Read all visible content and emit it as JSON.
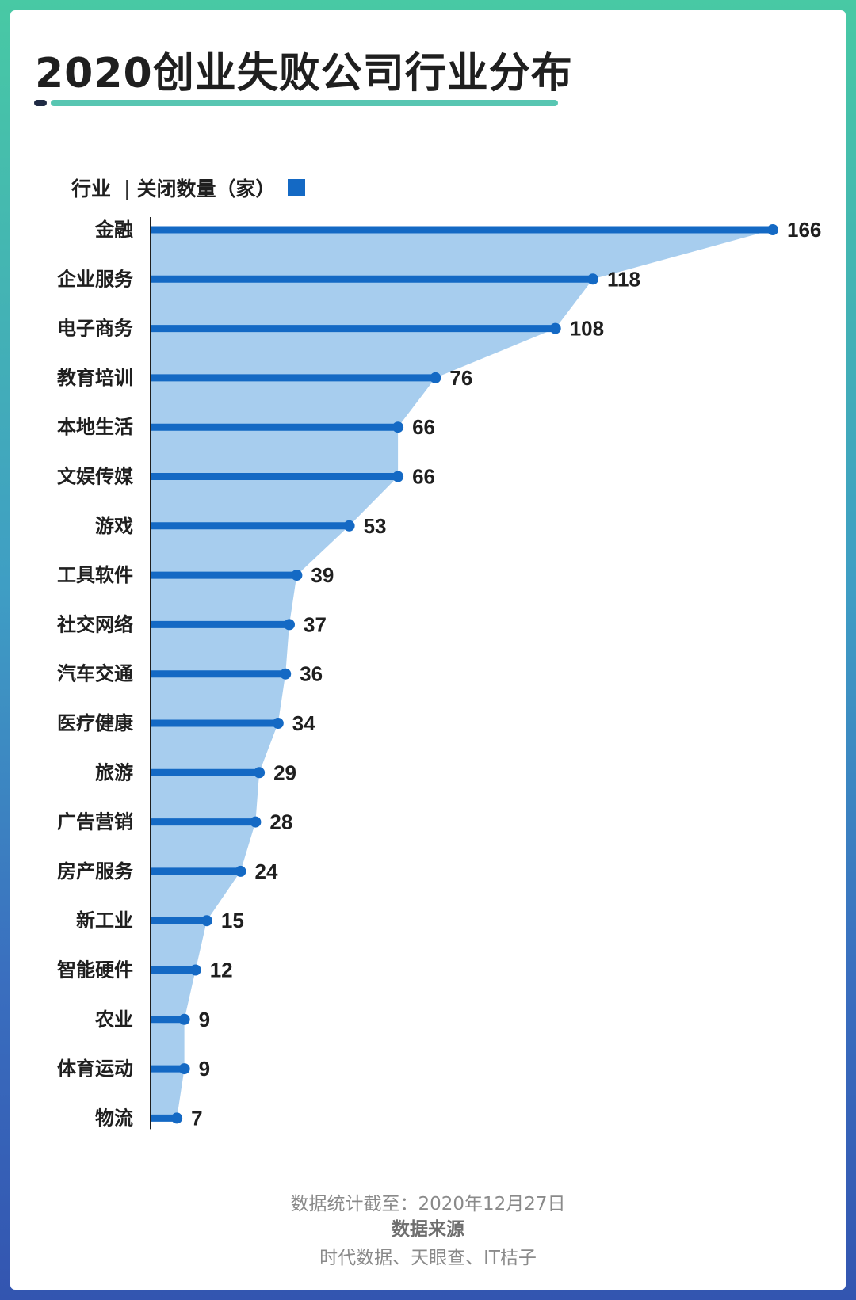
{
  "title": "2020创业失败公司行业分布",
  "legend": {
    "category_header": "行业",
    "separator": "|",
    "value_header": "关闭数量（家）",
    "color": "#1469c4"
  },
  "footer": {
    "date_note": "数据统计截至：2020年12月27日",
    "source_title": "数据来源",
    "sources": "时代数据、天眼查、IT桔子"
  },
  "colors": {
    "bar": "#1469c4",
    "area": "#a7cdee",
    "title": "#1f1f1f",
    "accent_line": "#58c6b2"
  },
  "chart_data": {
    "type": "bar",
    "orientation": "horizontal",
    "title": "2020创业失败公司行业分布",
    "xlabel": "关闭数量（家）",
    "ylabel": "行业",
    "categories": [
      "金融",
      "企业服务",
      "电子商务",
      "教育培训",
      "本地生活",
      "文娱传媒",
      "游戏",
      "工具软件",
      "社交网络",
      "汽车交通",
      "医疗健康",
      "旅游",
      "广告营销",
      "房产服务",
      "新工业",
      "智能硬件",
      "农业",
      "体育运动",
      "物流"
    ],
    "values": [
      166,
      118,
      108,
      76,
      66,
      66,
      53,
      39,
      37,
      36,
      34,
      29,
      28,
      24,
      15,
      12,
      9,
      9,
      7
    ],
    "xlim": [
      0,
      166
    ],
    "grid": false,
    "data_labels": true,
    "area_fill_between_bar_ends": true
  }
}
